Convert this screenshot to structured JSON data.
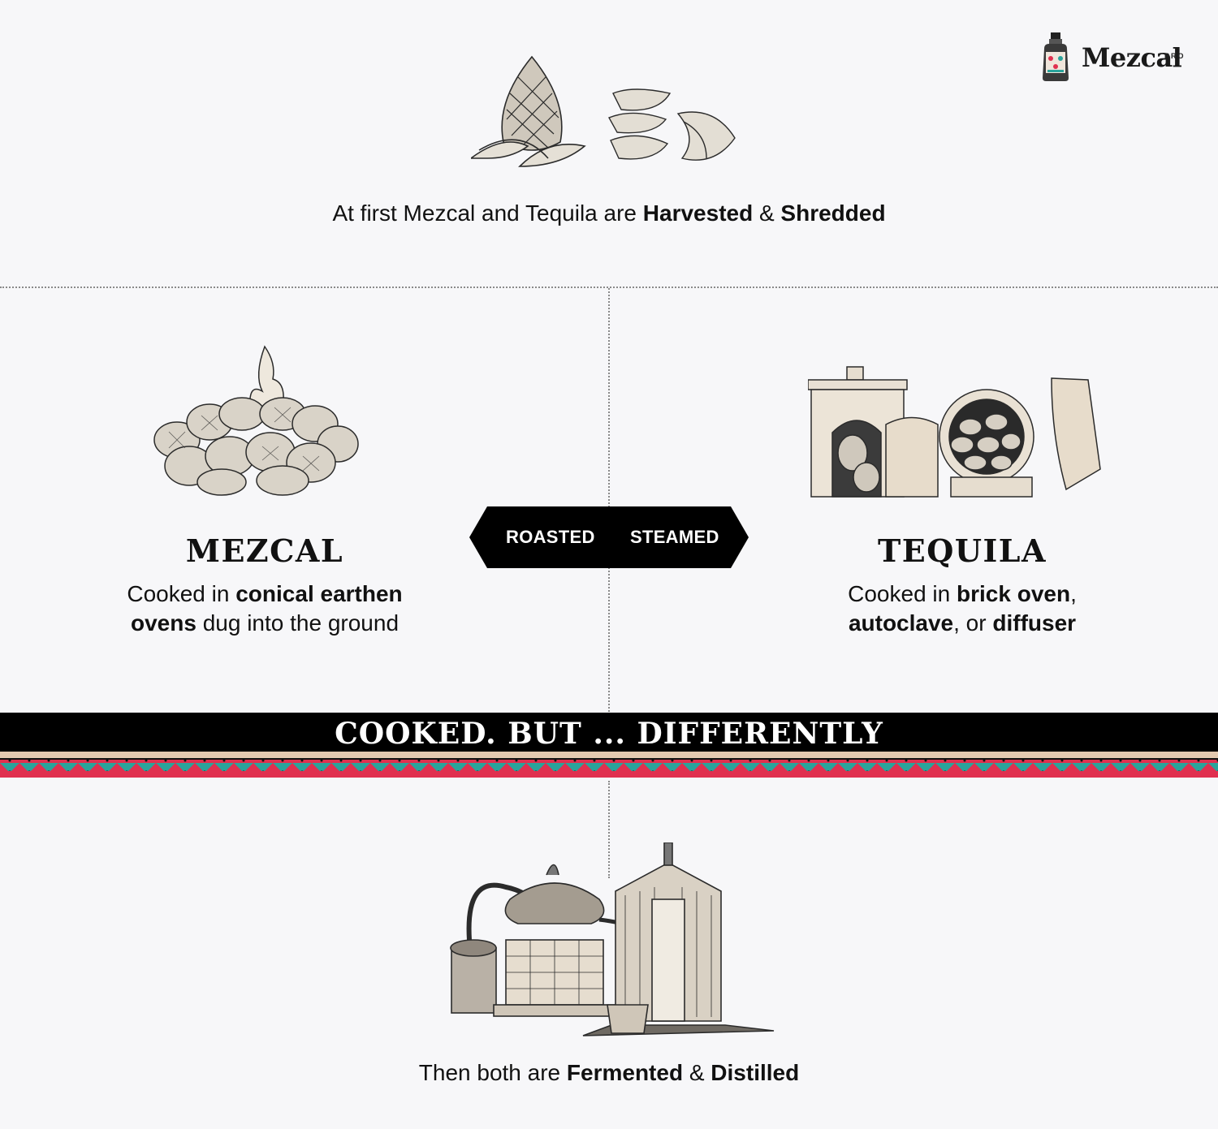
{
  "brand": {
    "name": "Mezcal",
    "suffix": "PRO"
  },
  "top": {
    "caption_prefix": "At first Mezcal and Tequila are ",
    "caption_bold1": "Harvested",
    "caption_amp": " & ",
    "caption_bold2": "Shredded",
    "image_icon": "agave-pina-icon"
  },
  "badge": {
    "left": "ROASTED",
    "right": "STEAMED"
  },
  "mezcal": {
    "title": "MEZCAL",
    "line1_a": "Cooked in ",
    "line1_b": "conical earthen",
    "line2_a": "ovens",
    "line2_b": " dug into the ground",
    "image_icon": "earthen-pit-oven-icon"
  },
  "tequila": {
    "title": "TEQUILA",
    "line1_a": "Cooked in ",
    "line1_b": "brick oven",
    "line1_c": ",",
    "line2_a": "autoclave",
    "line2_b": ", or ",
    "line2_c": "diffuser",
    "image_icon": "brick-oven-autoclave-icon"
  },
  "banner": {
    "text": "COOKED. BUT ... DIFFERENTLY"
  },
  "bottom": {
    "caption_prefix": "Then both are ",
    "caption_bold1": "Fermented",
    "caption_amp": " & ",
    "caption_bold2": "Distilled",
    "image_icon": "still-and-fermentation-tank-icon"
  },
  "colors": {
    "background": "#f7f7f9",
    "banner": "#000000",
    "stripe_tan": "#e3c9b0",
    "stripe_teal": "#2aa39b",
    "stripe_red": "#e0304f"
  }
}
